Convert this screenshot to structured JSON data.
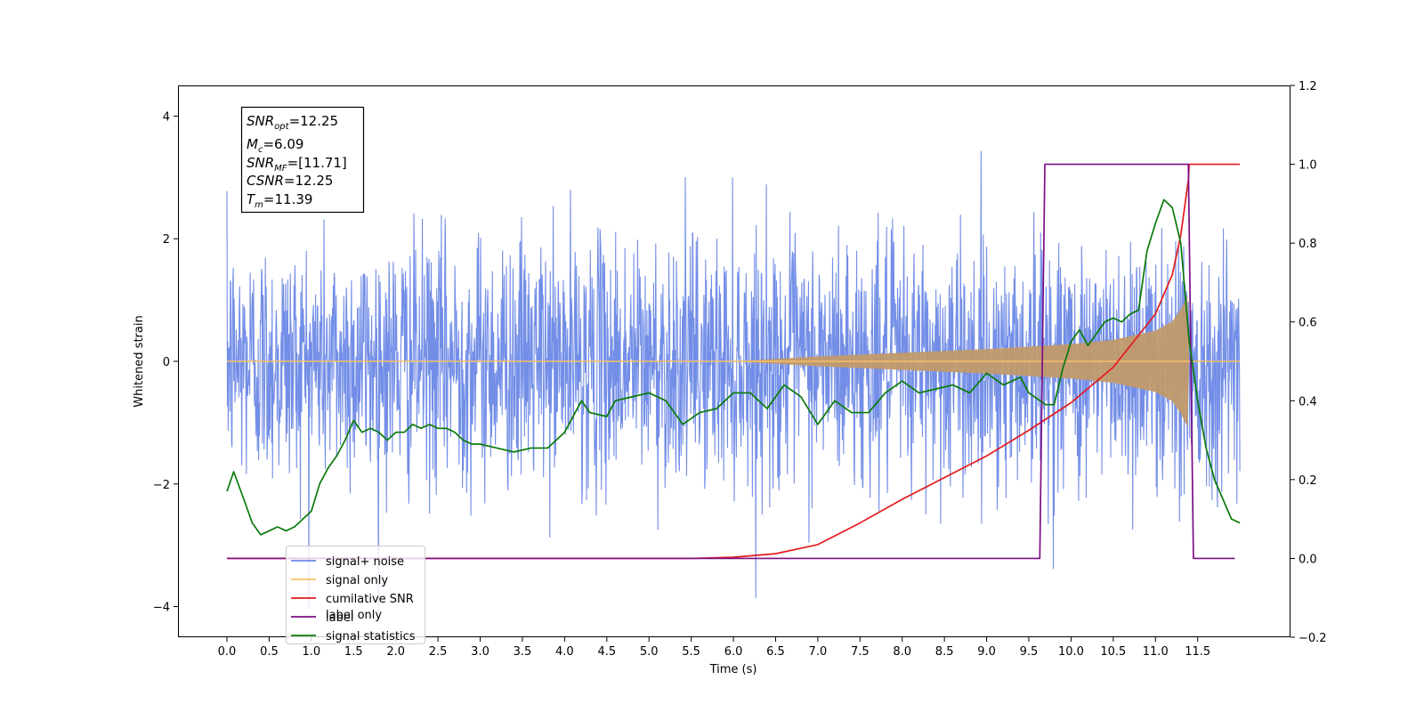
{
  "chart_data": {
    "type": "line",
    "xlabel": "Time (s)",
    "ylabel": "Whitened strain",
    "xlim": [
      -0.58,
      12.6
    ],
    "ylim_left": [
      -4.5,
      4.5
    ],
    "ylim_right": [
      -0.2,
      1.2
    ],
    "x_ticks": [
      "0.0",
      "0.5",
      "1.0",
      "1.5",
      "2.0",
      "2.5",
      "3.0",
      "3.5",
      "4.0",
      "4.5",
      "5.0",
      "5.5",
      "6.0",
      "6.5",
      "7.0",
      "7.5",
      "8.0",
      "8.5",
      "9.0",
      "9.5",
      "10.0",
      "10.5",
      "11.0",
      "11.5"
    ],
    "y_left_ticks": [
      "−4",
      "−2",
      "0",
      "2",
      "4"
    ],
    "y_right_ticks": [
      "−0.2",
      "0.0",
      "0.2",
      "0.4",
      "0.6",
      "0.8",
      "1.0",
      "1.2"
    ],
    "info_box": {
      "line1_base": "SNR",
      "line1_sub": "opt",
      "line1_rest": "=12.25",
      "line2_base": "M",
      "line2_sub": "c",
      "line2_rest": "=6.09",
      "line3_base": "SNR",
      "line3_sub": "MF",
      "line3_rest": "=[11.71]",
      "line4_base": "CSNR",
      "line4_rest": "=12.25",
      "line5_base": "T",
      "line5_sub": "m",
      "line5_rest": "=11.39"
    },
    "legend": {
      "placement": "lower-left",
      "entries": [
        {
          "name": "signal+ noise",
          "color": "#6b88e6"
        },
        {
          "name": "signal only",
          "color": "#f8c067"
        },
        {
          "name": "cumilative SNR",
          "color": "#e31a1c"
        },
        {
          "name": "label",
          "color": "#7b0f86"
        },
        {
          "name": "signal statistics",
          "color": "#0a7a0a"
        }
      ],
      "hidden_text": "label only"
    },
    "series": [
      {
        "name": "signal+ noise",
        "axis": "left",
        "noise_amplitude": 1.0,
        "x_range": [
          0.0,
          12.0
        ]
      },
      {
        "name": "signal only",
        "axis": "left",
        "envelope": {
          "x": [
            0.0,
            6.0,
            7.0,
            8.0,
            9.0,
            10.0,
            10.5,
            11.0,
            11.2,
            11.3,
            11.39,
            11.4,
            12.0
          ],
          "amp": [
            0.0,
            0.0,
            0.08,
            0.14,
            0.2,
            0.28,
            0.35,
            0.5,
            0.65,
            0.85,
            1.1,
            0.0,
            0.0
          ]
        }
      },
      {
        "name": "cumilative SNR",
        "axis": "right",
        "x": [
          0.0,
          5.0,
          5.5,
          6.0,
          6.5,
          7.0,
          7.5,
          8.0,
          8.5,
          9.0,
          9.5,
          10.0,
          10.5,
          11.0,
          11.2,
          11.3,
          11.39,
          11.4,
          12.0
        ],
        "y": [
          0.0,
          0.0,
          0.0,
          0.003,
          0.012,
          0.035,
          0.09,
          0.15,
          0.205,
          0.26,
          0.325,
          0.395,
          0.485,
          0.62,
          0.72,
          0.82,
          0.96,
          1.0,
          1.0
        ]
      },
      {
        "name": "label",
        "axis": "right",
        "x": [
          0.0,
          9.63,
          9.69,
          11.39,
          11.45,
          11.94
        ],
        "y": [
          0.0,
          0.0,
          1.0,
          1.0,
          0.0,
          0.0
        ]
      },
      {
        "name": "signal statistics",
        "axis": "right",
        "x": [
          0.0,
          0.08,
          0.2,
          0.3,
          0.4,
          0.5,
          0.6,
          0.7,
          0.8,
          0.9,
          1.0,
          1.1,
          1.2,
          1.3,
          1.4,
          1.5,
          1.6,
          1.7,
          1.8,
          1.9,
          2.0,
          2.1,
          2.2,
          2.3,
          2.4,
          2.5,
          2.6,
          2.7,
          2.8,
          2.9,
          3.0,
          3.2,
          3.4,
          3.6,
          3.8,
          4.0,
          4.2,
          4.3,
          4.5,
          4.6,
          4.8,
          5.0,
          5.2,
          5.4,
          5.6,
          5.8,
          6.0,
          6.2,
          6.4,
          6.6,
          6.8,
          7.0,
          7.2,
          7.4,
          7.6,
          7.8,
          8.0,
          8.2,
          8.4,
          8.6,
          8.8,
          9.0,
          9.2,
          9.4,
          9.5,
          9.7,
          9.8,
          9.9,
          10.0,
          10.1,
          10.2,
          10.3,
          10.4,
          10.5,
          10.6,
          10.7,
          10.8,
          10.9,
          11.0,
          11.1,
          11.2,
          11.3,
          11.4,
          11.5,
          11.6,
          11.7,
          11.8,
          11.9,
          12.0
        ],
        "y": [
          0.17,
          0.22,
          0.15,
          0.09,
          0.06,
          0.07,
          0.08,
          0.07,
          0.08,
          0.1,
          0.12,
          0.19,
          0.23,
          0.26,
          0.3,
          0.35,
          0.32,
          0.33,
          0.32,
          0.3,
          0.32,
          0.32,
          0.34,
          0.33,
          0.34,
          0.33,
          0.33,
          0.32,
          0.3,
          0.29,
          0.29,
          0.28,
          0.27,
          0.28,
          0.28,
          0.32,
          0.4,
          0.37,
          0.36,
          0.4,
          0.41,
          0.42,
          0.4,
          0.34,
          0.37,
          0.38,
          0.42,
          0.42,
          0.38,
          0.44,
          0.41,
          0.34,
          0.4,
          0.37,
          0.37,
          0.42,
          0.45,
          0.42,
          0.43,
          0.44,
          0.42,
          0.47,
          0.44,
          0.46,
          0.42,
          0.39,
          0.39,
          0.48,
          0.55,
          0.58,
          0.54,
          0.57,
          0.6,
          0.61,
          0.6,
          0.62,
          0.63,
          0.78,
          0.85,
          0.91,
          0.89,
          0.8,
          0.55,
          0.4,
          0.28,
          0.2,
          0.15,
          0.1,
          0.09
        ]
      }
    ]
  }
}
